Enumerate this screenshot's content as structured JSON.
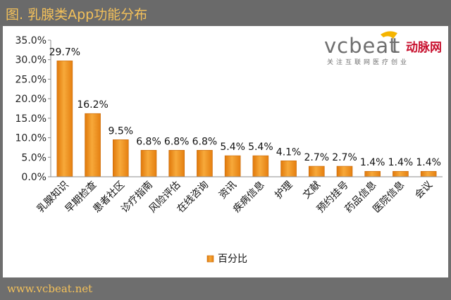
{
  "title": "图. 乳腺类App功能分布",
  "footer": "www.vcbeat.net",
  "logo": {
    "brand": "vcbeat",
    "brand_cn": "动脉网",
    "tagline": "关注互联网医疗创业"
  },
  "chart_data": {
    "type": "bar",
    "categories": [
      "乳腺知识",
      "早期检查",
      "患者社区",
      "诊疗指南",
      "风险评估",
      "在线咨询",
      "资讯",
      "疾病信息",
      "护理",
      "文献",
      "预约挂号",
      "药品信息",
      "医院信息",
      "会议"
    ],
    "series": [
      {
        "name": "百分比",
        "values": [
          29.7,
          16.2,
          9.5,
          6.8,
          6.8,
          6.8,
          5.4,
          5.4,
          4.1,
          2.7,
          2.7,
          1.4,
          1.4,
          1.4
        ]
      }
    ],
    "data_labels": [
      "29.7%",
      "16.2%",
      "9.5%",
      "6.8%",
      "6.8%",
      "6.8%",
      "5.4%",
      "5.4%",
      "4.1%",
      "2.7%",
      "2.7%",
      "1.4%",
      "1.4%",
      "1.4%"
    ],
    "y_ticks": [
      "0.0%",
      "5.0%",
      "10.0%",
      "15.0%",
      "20.0%",
      "25.0%",
      "30.0%",
      "35.0%"
    ],
    "ylim": [
      0,
      35
    ],
    "grid": false,
    "legend": "bottom-left",
    "bar_color": "#f39a1e"
  }
}
